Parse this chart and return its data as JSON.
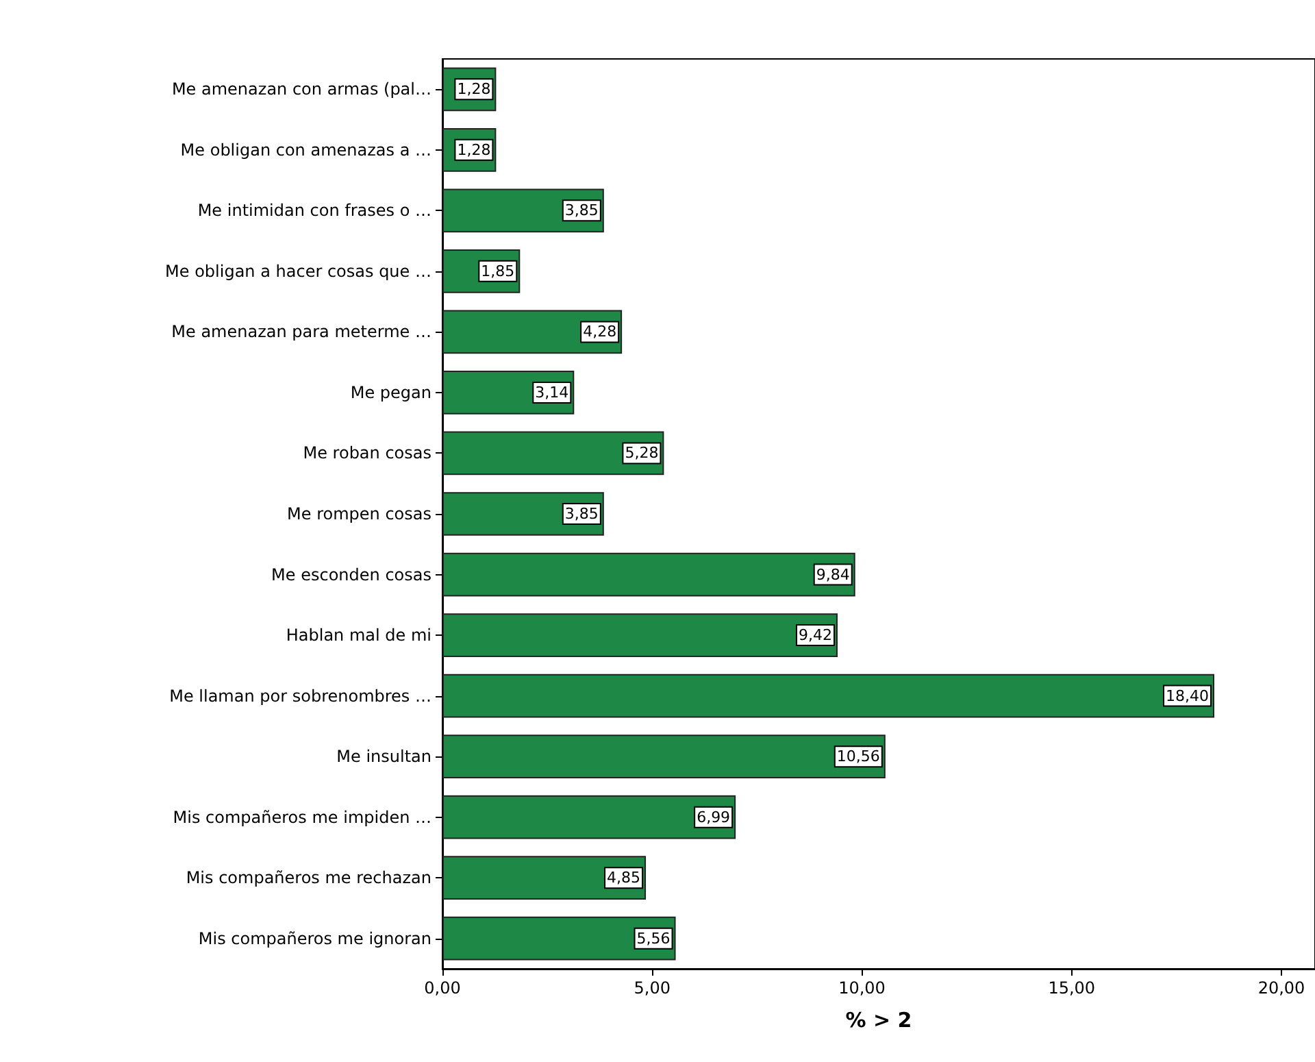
{
  "chart_data": {
    "type": "bar",
    "orientation": "horizontal",
    "xlabel": "% > 2",
    "categories": [
      "Me amenazan con armas (pal…",
      "Me obligan con amenazas a …",
      "Me intimidan con frases o …",
      "Me obligan a hacer cosas que …",
      "Me amenazan para meterme …",
      "Me pegan",
      "Me roban cosas",
      "Me rompen cosas",
      "Me esconden cosas",
      "Hablan mal de mi",
      "Me llaman por sobrenombres …",
      "Me insultan",
      "Mis compañeros me impiden …",
      "Mis compañeros me rechazan",
      "Mis compañeros me ignoran"
    ],
    "values": [
      1.28,
      1.28,
      3.85,
      1.85,
      4.28,
      3.14,
      5.28,
      3.85,
      9.84,
      9.42,
      18.4,
      10.56,
      6.99,
      4.85,
      5.56
    ],
    "value_labels": [
      "1,28",
      "1,28",
      "3,85",
      "1,85",
      "4,28",
      "3,14",
      "5,28",
      "3,85",
      "9,84",
      "9,42",
      "18,40",
      "10,56",
      "6,99",
      "4,85",
      "5,56"
    ],
    "color": "#1e8846",
    "xlim": [
      0,
      20.8
    ],
    "xticks": [
      {
        "value": 0,
        "label": "0,00"
      },
      {
        "value": 5,
        "label": "5,00"
      },
      {
        "value": 10,
        "label": "10,00"
      },
      {
        "value": 15,
        "label": "15,00"
      },
      {
        "value": 20,
        "label": "20,00"
      }
    ],
    "grid": false
  }
}
